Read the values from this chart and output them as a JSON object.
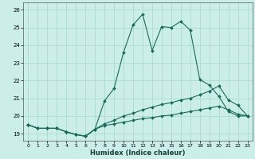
{
  "xlabel": "Humidex (Indice chaleur)",
  "bg_color": "#cceee8",
  "grid_color": "#aaddcc",
  "line_color": "#1a6b5a",
  "xlim": [
    -0.5,
    23.5
  ],
  "ylim": [
    18.6,
    26.4
  ],
  "yticks": [
    19,
    20,
    21,
    22,
    23,
    24,
    25,
    26
  ],
  "xticks": [
    0,
    1,
    2,
    3,
    4,
    5,
    6,
    7,
    8,
    9,
    10,
    11,
    12,
    13,
    14,
    15,
    16,
    17,
    18,
    19,
    20,
    21,
    22,
    23
  ],
  "line1_x": [
    0,
    1,
    2,
    3,
    4,
    5,
    6,
    7,
    8,
    9,
    10,
    11,
    12,
    13,
    14,
    15,
    16,
    17,
    18,
    19,
    20,
    21,
    22,
    23
  ],
  "line1_y": [
    19.5,
    19.3,
    19.3,
    19.3,
    19.1,
    18.95,
    18.85,
    19.25,
    20.85,
    21.55,
    23.6,
    25.15,
    25.75,
    23.7,
    25.05,
    25.0,
    25.35,
    24.85,
    22.05,
    21.75,
    21.1,
    20.25,
    20.0,
    20.0
  ],
  "line2_x": [
    0,
    1,
    2,
    3,
    4,
    5,
    6,
    7,
    8,
    9,
    10,
    11,
    12,
    13,
    14,
    15,
    16,
    17,
    18,
    19,
    20,
    21,
    22,
    23
  ],
  "line2_y": [
    19.5,
    19.3,
    19.3,
    19.3,
    19.1,
    18.95,
    18.85,
    19.25,
    19.55,
    19.75,
    20.0,
    20.15,
    20.35,
    20.5,
    20.65,
    20.75,
    20.9,
    21.0,
    21.2,
    21.4,
    21.7,
    20.9,
    20.6,
    20.0
  ],
  "line3_x": [
    0,
    1,
    2,
    3,
    4,
    5,
    6,
    7,
    8,
    9,
    10,
    11,
    12,
    13,
    14,
    15,
    16,
    17,
    18,
    19,
    20,
    21,
    22,
    23
  ],
  "line3_y": [
    19.5,
    19.3,
    19.3,
    19.3,
    19.1,
    18.95,
    18.85,
    19.25,
    19.45,
    19.55,
    19.65,
    19.75,
    19.85,
    19.9,
    20.0,
    20.05,
    20.15,
    20.25,
    20.35,
    20.45,
    20.55,
    20.35,
    20.1,
    20.0
  ]
}
